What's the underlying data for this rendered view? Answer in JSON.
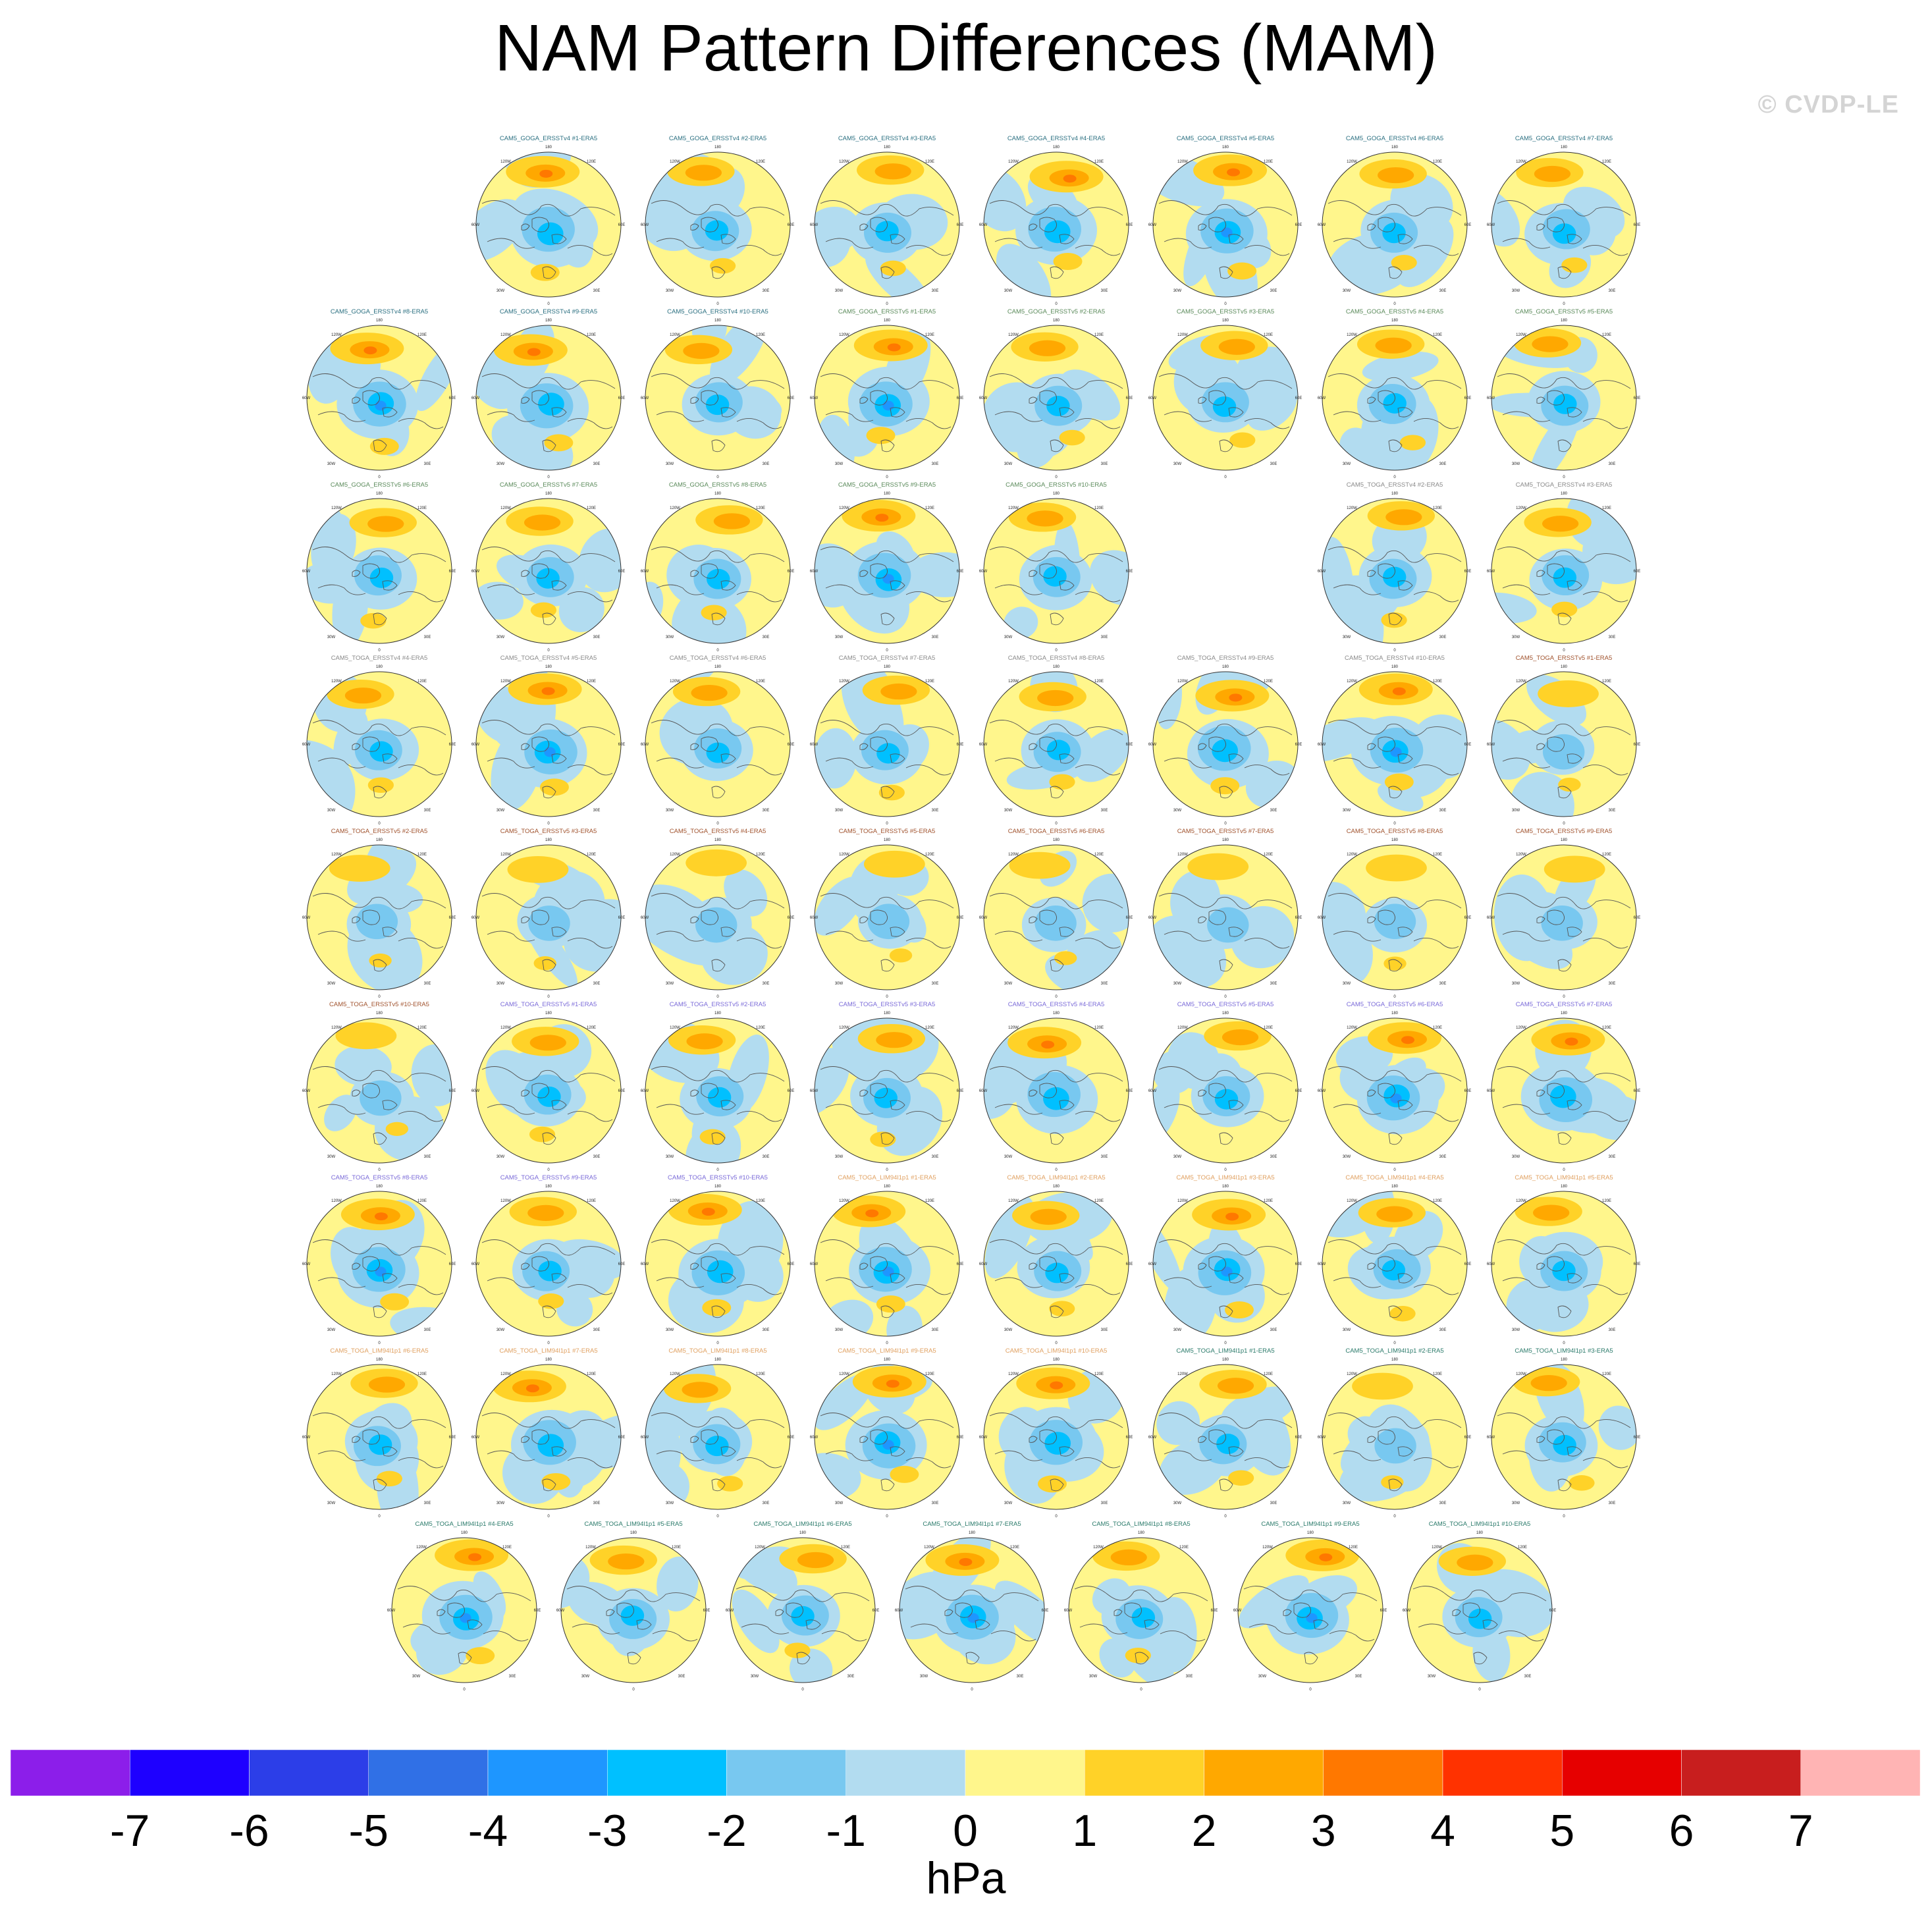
{
  "header": {
    "title": "NAM Pattern Differences (MAM)",
    "copyright": "© CVDP-LE"
  },
  "chart_data": {
    "type": "heatmap",
    "title": "NAM Pattern Differences (MAM)",
    "projection": "north polar stereographic",
    "map_tick_labels": [
      "180",
      "120W",
      "120E",
      "60W",
      "60E",
      "30W",
      "30E",
      "0"
    ],
    "colorbar": {
      "label": "hPa",
      "tick_labels": [
        "-7",
        "-6",
        "-5",
        "-4",
        "-3",
        "-2",
        "-1",
        "0",
        "1",
        "2",
        "3",
        "4",
        "5",
        "6",
        "7"
      ],
      "colors": [
        "#8c1eea",
        "#1e00ff",
        "#2c3ee8",
        "#3070e6",
        "#1e96ff",
        "#00c0ff",
        "#78c8f0",
        "#b2dcf0",
        "#fff68c",
        "#ffd228",
        "#ffa800",
        "#ff7800",
        "#ff3200",
        "#e60000",
        "#c81e1e",
        "#ffb4b4"
      ]
    },
    "panel_title_colors": {
      "goga_v4": "#2a6f80",
      "goga_v5": "#5a8a5a",
      "toga_v4": "#8a8a8a",
      "toga_v5a": "#a0522d",
      "toga_v5b": "#7a6ad8",
      "toga_lim_a": "#e0a060",
      "toga_lim_b": "#2a7a6a"
    },
    "panels": [
      {
        "title": "CAM5_GOGA_ERSSTv4 #1-ERA5",
        "group": "goga_v4",
        "anomaly": "strong",
        "seed": 1
      },
      {
        "title": "CAM5_GOGA_ERSSTv4 #2-ERA5",
        "group": "goga_v4",
        "anomaly": "moderate",
        "seed": 2
      },
      {
        "title": "CAM5_GOGA_ERSSTv4 #3-ERA5",
        "group": "goga_v4",
        "anomaly": "moderate",
        "seed": 3
      },
      {
        "title": "CAM5_GOGA_ERSSTv4 #4-ERA5",
        "group": "goga_v4",
        "anomaly": "strong",
        "seed": 4
      },
      {
        "title": "CAM5_GOGA_ERSSTv4 #5-ERA5",
        "group": "goga_v4",
        "anomaly": "strong",
        "seed": 5
      },
      {
        "title": "CAM5_GOGA_ERSSTv4 #6-ERA5",
        "group": "goga_v4",
        "anomaly": "moderate",
        "seed": 6
      },
      {
        "title": "CAM5_GOGA_ERSSTv4 #7-ERA5",
        "group": "goga_v4",
        "anomaly": "moderate",
        "seed": 7
      },
      {
        "title": "CAM5_GOGA_ERSSTv4 #8-ERA5",
        "group": "goga_v4",
        "anomaly": "strong",
        "seed": 8
      },
      {
        "title": "CAM5_GOGA_ERSSTv4 #9-ERA5",
        "group": "goga_v4",
        "anomaly": "strong",
        "seed": 9
      },
      {
        "title": "CAM5_GOGA_ERSSTv4 #10-ERA5",
        "group": "goga_v4",
        "anomaly": "moderate",
        "seed": 10
      },
      {
        "title": "CAM5_GOGA_ERSSTv5 #1-ERA5",
        "group": "goga_v5",
        "anomaly": "strong",
        "seed": 11
      },
      {
        "title": "CAM5_GOGA_ERSSTv5 #2-ERA5",
        "group": "goga_v5",
        "anomaly": "moderate",
        "seed": 12
      },
      {
        "title": "CAM5_GOGA_ERSSTv5 #3-ERA5",
        "group": "goga_v5",
        "anomaly": "moderate",
        "seed": 13
      },
      {
        "title": "CAM5_GOGA_ERSSTv5 #4-ERA5",
        "group": "goga_v5",
        "anomaly": "moderate",
        "seed": 14
      },
      {
        "title": "CAM5_GOGA_ERSSTv5 #5-ERA5",
        "group": "goga_v5",
        "anomaly": "moderate",
        "seed": 15
      },
      {
        "title": "CAM5_GOGA_ERSSTv5 #6-ERA5",
        "group": "goga_v5",
        "anomaly": "moderate",
        "seed": 16
      },
      {
        "title": "CAM5_GOGA_ERSSTv5 #7-ERA5",
        "group": "goga_v5",
        "anomaly": "moderate",
        "seed": 17
      },
      {
        "title": "CAM5_GOGA_ERSSTv5 #8-ERA5",
        "group": "goga_v5",
        "anomaly": "moderate",
        "seed": 18
      },
      {
        "title": "CAM5_GOGA_ERSSTv5 #9-ERA5",
        "group": "goga_v5",
        "anomaly": "strong",
        "seed": 19
      },
      {
        "title": "CAM5_GOGA_ERSSTv5 #10-ERA5",
        "group": "goga_v5",
        "anomaly": "moderate",
        "seed": 20
      },
      {
        "title": "CAM5_TOGA_ERSSTv4 #2-ERA5",
        "group": "toga_v4",
        "anomaly": "moderate",
        "seed": 21
      },
      {
        "title": "CAM5_TOGA_ERSSTv4 #3-ERA5",
        "group": "toga_v4",
        "anomaly": "moderate",
        "seed": 22
      },
      {
        "title": "CAM5_TOGA_ERSSTv4 #4-ERA5",
        "group": "toga_v4",
        "anomaly": "moderate",
        "seed": 23
      },
      {
        "title": "CAM5_TOGA_ERSSTv4 #5-ERA5",
        "group": "toga_v4",
        "anomaly": "strong",
        "seed": 24
      },
      {
        "title": "CAM5_TOGA_ERSSTv4 #6-ERA5",
        "group": "toga_v4",
        "anomaly": "moderate",
        "seed": 25
      },
      {
        "title": "CAM5_TOGA_ERSSTv4 #7-ERA5",
        "group": "toga_v4",
        "anomaly": "moderate",
        "seed": 26
      },
      {
        "title": "CAM5_TOGA_ERSSTv4 #8-ERA5",
        "group": "toga_v4",
        "anomaly": "moderate",
        "seed": 27
      },
      {
        "title": "CAM5_TOGA_ERSSTv4 #9-ERA5",
        "group": "toga_v4",
        "anomaly": "strong",
        "seed": 28
      },
      {
        "title": "CAM5_TOGA_ERSSTv4 #10-ERA5",
        "group": "toga_v4",
        "anomaly": "strong",
        "seed": 29
      },
      {
        "title": "CAM5_TOGA_ERSSTv5 #1-ERA5",
        "group": "toga_v5a",
        "anomaly": "weak",
        "seed": 30
      },
      {
        "title": "CAM5_TOGA_ERSSTv5 #2-ERA5",
        "group": "toga_v5a",
        "anomaly": "weak",
        "seed": 31
      },
      {
        "title": "CAM5_TOGA_ERSSTv5 #3-ERA5",
        "group": "toga_v5a",
        "anomaly": "weak",
        "seed": 32
      },
      {
        "title": "CAM5_TOGA_ERSSTv5 #4-ERA5",
        "group": "toga_v5a",
        "anomaly": "weak",
        "seed": 33
      },
      {
        "title": "CAM5_TOGA_ERSSTv5 #5-ERA5",
        "group": "toga_v5a",
        "anomaly": "weak",
        "seed": 34
      },
      {
        "title": "CAM5_TOGA_ERSSTv5 #6-ERA5",
        "group": "toga_v5a",
        "anomaly": "weak",
        "seed": 35
      },
      {
        "title": "CAM5_TOGA_ERSSTv5 #7-ERA5",
        "group": "toga_v5a",
        "anomaly": "weak",
        "seed": 36
      },
      {
        "title": "CAM5_TOGA_ERSSTv5 #8-ERA5",
        "group": "toga_v5a",
        "anomaly": "weak",
        "seed": 37
      },
      {
        "title": "CAM5_TOGA_ERSSTv5 #9-ERA5",
        "group": "toga_v5a",
        "anomaly": "weak",
        "seed": 38
      },
      {
        "title": "CAM5_TOGA_ERSSTv5 #10-ERA5",
        "group": "toga_v5a",
        "anomaly": "weak",
        "seed": 39
      },
      {
        "title": "CAM5_TOGA_ERSSTv5 #1-ERA5",
        "group": "toga_v5b",
        "anomaly": "moderate",
        "seed": 40
      },
      {
        "title": "CAM5_TOGA_ERSSTv5 #2-ERA5",
        "group": "toga_v5b",
        "anomaly": "moderate",
        "seed": 41
      },
      {
        "title": "CAM5_TOGA_ERSSTv5 #3-ERA5",
        "group": "toga_v5b",
        "anomaly": "moderate",
        "seed": 42
      },
      {
        "title": "CAM5_TOGA_ERSSTv5 #4-ERA5",
        "group": "toga_v5b",
        "anomaly": "strong",
        "seed": 43
      },
      {
        "title": "CAM5_TOGA_ERSSTv5 #5-ERA5",
        "group": "toga_v5b",
        "anomaly": "moderate",
        "seed": 44
      },
      {
        "title": "CAM5_TOGA_ERSSTv5 #6-ERA5",
        "group": "toga_v5b",
        "anomaly": "strong",
        "seed": 45
      },
      {
        "title": "CAM5_TOGA_ERSSTv5 #7-ERA5",
        "group": "toga_v5b",
        "anomaly": "strong",
        "seed": 46
      },
      {
        "title": "CAM5_TOGA_ERSSTv5 #8-ERA5",
        "group": "toga_v5b",
        "anomaly": "strong",
        "seed": 47
      },
      {
        "title": "CAM5_TOGA_ERSSTv5 #9-ERA5",
        "group": "toga_v5b",
        "anomaly": "moderate",
        "seed": 48
      },
      {
        "title": "CAM5_TOGA_ERSSTv5 #10-ERA5",
        "group": "toga_v5b",
        "anomaly": "strong",
        "seed": 49
      },
      {
        "title": "CAM5_TOGA_LIM94l1p1 #1-ERA5",
        "group": "toga_lim_a",
        "anomaly": "strong",
        "seed": 50
      },
      {
        "title": "CAM5_TOGA_LIM94l1p1 #2-ERA5",
        "group": "toga_lim_a",
        "anomaly": "moderate",
        "seed": 51
      },
      {
        "title": "CAM5_TOGA_LIM94l1p1 #3-ERA5",
        "group": "toga_lim_a",
        "anomaly": "strong",
        "seed": 52
      },
      {
        "title": "CAM5_TOGA_LIM94l1p1 #4-ERA5",
        "group": "toga_lim_a",
        "anomaly": "moderate",
        "seed": 53
      },
      {
        "title": "CAM5_TOGA_LIM94l1p1 #5-ERA5",
        "group": "toga_lim_a",
        "anomaly": "moderate",
        "seed": 54
      },
      {
        "title": "CAM5_TOGA_LIM94l1p1 #6-ERA5",
        "group": "toga_lim_a",
        "anomaly": "moderate",
        "seed": 55
      },
      {
        "title": "CAM5_TOGA_LIM94l1p1 #7-ERA5",
        "group": "toga_lim_a",
        "anomaly": "strong",
        "seed": 56
      },
      {
        "title": "CAM5_TOGA_LIM94l1p1 #8-ERA5",
        "group": "toga_lim_a",
        "anomaly": "moderate",
        "seed": 57
      },
      {
        "title": "CAM5_TOGA_LIM94l1p1 #9-ERA5",
        "group": "toga_lim_a",
        "anomaly": "strong",
        "seed": 58
      },
      {
        "title": "CAM5_TOGA_LIM94l1p1 #10-ERA5",
        "group": "toga_lim_a",
        "anomaly": "strong",
        "seed": 59
      },
      {
        "title": "CAM5_TOGA_LIM94l1p1 #1-ERA5",
        "group": "toga_lim_b",
        "anomaly": "moderate",
        "seed": 60
      },
      {
        "title": "CAM5_TOGA_LIM94l1p1 #2-ERA5",
        "group": "toga_lim_b",
        "anomaly": "weak",
        "seed": 61
      },
      {
        "title": "CAM5_TOGA_LIM94l1p1 #3-ERA5",
        "group": "toga_lim_b",
        "anomaly": "moderate",
        "seed": 62
      },
      {
        "title": "CAM5_TOGA_LIM94l1p1 #4-ERA5",
        "group": "toga_lim_b",
        "anomaly": "strong",
        "seed": 63
      },
      {
        "title": "CAM5_TOGA_LIM94l1p1 #5-ERA5",
        "group": "toga_lim_b",
        "anomaly": "moderate",
        "seed": 64
      },
      {
        "title": "CAM5_TOGA_LIM94l1p1 #6-ERA5",
        "group": "toga_lim_b",
        "anomaly": "moderate",
        "seed": 65
      },
      {
        "title": "CAM5_TOGA_LIM94l1p1 #7-ERA5",
        "group": "toga_lim_b",
        "anomaly": "strong",
        "seed": 66
      },
      {
        "title": "CAM5_TOGA_LIM94l1p1 #8-ERA5",
        "group": "toga_lim_b",
        "anomaly": "moderate",
        "seed": 67
      },
      {
        "title": "CAM5_TOGA_LIM94l1p1 #9-ERA5",
        "group": "toga_lim_b",
        "anomaly": "strong",
        "seed": 68
      },
      {
        "title": "CAM5_TOGA_LIM94l1p1 #10-ERA5",
        "group": "toga_lim_b",
        "anomaly": "moderate",
        "seed": 69
      }
    ]
  }
}
